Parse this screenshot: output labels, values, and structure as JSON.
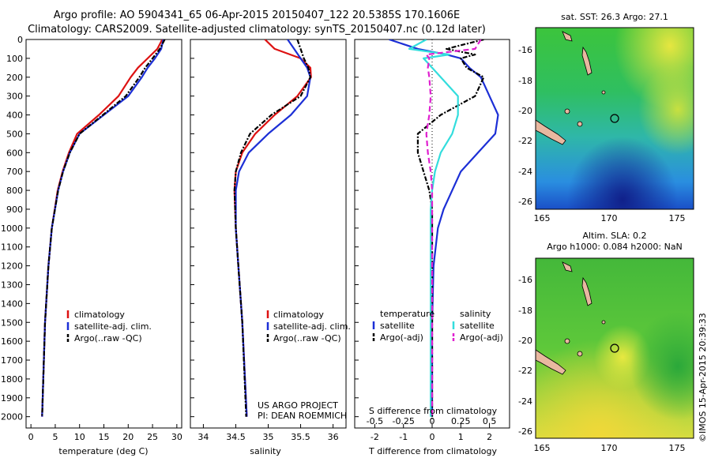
{
  "header": {
    "line1": "Argo profile: AO 5904341_65 06-Apr-2015 20150407_122 20.5385S 170.1606E",
    "line2": "Climatology: CARS2009. Satellite-adjusted climatology: synTS_20150407.nc (0.12d later)"
  },
  "colors": {
    "climatology": "#dd1111",
    "satellite": "#1c2fd6",
    "argo": "#000000",
    "satellite_salinity": "#33dddd",
    "argo_salinity_adj": "#e020d0"
  },
  "chart_data": [
    {
      "type": "line",
      "id": "temperature",
      "xlabel": "temperature (deg C)",
      "ylabel": "",
      "xlim": [
        -1,
        31
      ],
      "ylim": [
        2060,
        0
      ],
      "xticks": [
        0,
        5,
        10,
        15,
        20,
        25,
        30
      ],
      "yticks": [
        0,
        100,
        200,
        300,
        400,
        500,
        600,
        700,
        800,
        900,
        1000,
        1100,
        1200,
        1300,
        1400,
        1500,
        1600,
        1700,
        1800,
        1900,
        2000
      ],
      "legend": [
        "climatology",
        "satellite-adj. clim.",
        "Argo(..raw -QC)"
      ],
      "series": [
        {
          "name": "climatology",
          "color": "#dd1111",
          "style": "solid",
          "depth": [
            0,
            50,
            100,
            150,
            200,
            300,
            400,
            500,
            600,
            700,
            800,
            1000,
            1200,
            1500,
            2000
          ],
          "values": [
            27.0,
            26.0,
            24.0,
            22.0,
            20.5,
            18.0,
            14.0,
            9.5,
            7.8,
            6.5,
            5.5,
            4.3,
            3.6,
            2.9,
            2.3
          ]
        },
        {
          "name": "satellite-adj. clim.",
          "color": "#1c2fd6",
          "style": "solid",
          "depth": [
            0,
            50,
            100,
            150,
            200,
            300,
            400,
            500,
            600,
            700,
            800,
            1000,
            1200,
            1500,
            2000
          ],
          "values": [
            27.2,
            26.8,
            25.5,
            24.0,
            22.8,
            20.0,
            15.0,
            10.0,
            8.0,
            6.6,
            5.6,
            4.3,
            3.6,
            2.9,
            2.3
          ]
        },
        {
          "name": "Argo(..raw -QC)",
          "color": "#000000",
          "style": "dashdot",
          "depth": [
            0,
            50,
            100,
            150,
            200,
            300,
            400,
            500,
            600,
            700,
            800,
            1000,
            1200,
            1500,
            2000
          ],
          "values": [
            27.5,
            26.5,
            25.0,
            23.5,
            22.3,
            19.5,
            14.8,
            10.0,
            8.0,
            6.6,
            5.6,
            4.3,
            3.6,
            2.9,
            2.3
          ]
        }
      ]
    },
    {
      "type": "line",
      "id": "salinity",
      "xlabel": "salinity",
      "xlim": [
        33.8,
        36.2
      ],
      "ylim": [
        2060,
        0
      ],
      "xticks": [
        34,
        34.5,
        35,
        35.5,
        36
      ],
      "legend": [
        "climatology",
        "satellite-adj. clim.",
        "Argo(..raw -QC)"
      ],
      "series": [
        {
          "name": "climatology",
          "color": "#dd1111",
          "style": "solid",
          "depth": [
            0,
            50,
            100,
            150,
            200,
            300,
            400,
            500,
            600,
            700,
            800,
            1000,
            1200,
            1500,
            2000
          ],
          "values": [
            34.95,
            35.1,
            35.5,
            35.65,
            35.66,
            35.45,
            35.1,
            34.8,
            34.6,
            34.5,
            34.48,
            34.5,
            34.54,
            34.6,
            34.67
          ]
        },
        {
          "name": "satellite-adj. clim.",
          "color": "#1c2fd6",
          "style": "solid",
          "depth": [
            0,
            50,
            100,
            150,
            200,
            300,
            400,
            500,
            600,
            700,
            800,
            1000,
            1200,
            1500,
            2000
          ],
          "values": [
            35.3,
            35.4,
            35.5,
            35.6,
            35.65,
            35.6,
            35.35,
            35.0,
            34.7,
            34.55,
            34.5,
            34.5,
            34.54,
            34.6,
            34.67
          ]
        },
        {
          "name": "Argo(..raw -QC)",
          "color": "#000000",
          "style": "dashdot",
          "depth": [
            0,
            50,
            100,
            150,
            200,
            300,
            400,
            500,
            600,
            700,
            800,
            1000,
            1200,
            1500,
            2000
          ],
          "values": [
            35.45,
            35.5,
            35.55,
            35.62,
            35.65,
            35.5,
            35.05,
            34.72,
            34.58,
            34.5,
            34.48,
            34.5,
            34.54,
            34.6,
            34.66
          ]
        }
      ]
    },
    {
      "type": "line",
      "id": "differences",
      "xlabel": "T difference from climatology",
      "xlabel_top": "S difference from climatology",
      "xlim": [
        -2.7,
        2.7
      ],
      "ylim": [
        2060,
        0
      ],
      "xticks": [
        -2,
        -1,
        0,
        1,
        2
      ],
      "xticks_top_labels": [
        "-0.5",
        "-0.25",
        "0",
        "0.25",
        "0.5"
      ],
      "xticks_top_positions": [
        -2,
        -1,
        0,
        1,
        2
      ],
      "legend_left_title": "temperature",
      "legend_right_title": "salinity",
      "legend": [
        "satellite",
        "Argo(-adj)",
        "satellite",
        "Argo(-adj)"
      ],
      "series": [
        {
          "name": "T satellite",
          "color": "#1c2fd6",
          "style": "solid",
          "depth": [
            0,
            50,
            80,
            100,
            150,
            200,
            300,
            400,
            500,
            600,
            700,
            800,
            900,
            1000,
            1200,
            1500,
            2000
          ],
          "values": [
            -1.5,
            -0.5,
            0.5,
            1.0,
            1.3,
            1.7,
            2.0,
            2.3,
            2.2,
            1.6,
            1.0,
            0.7,
            0.4,
            0.2,
            0.05,
            0.0,
            0.0
          ]
        },
        {
          "name": "T Argo(-adj)",
          "color": "#000000",
          "style": "dashdot",
          "depth": [
            0,
            50,
            80,
            100,
            150,
            200,
            300,
            400,
            500,
            600,
            700,
            800,
            900,
            1000,
            1200,
            1500,
            2000
          ],
          "values": [
            1.8,
            0.5,
            1.5,
            1.0,
            1.2,
            1.8,
            1.5,
            0.3,
            -0.5,
            -0.5,
            -0.3,
            -0.1,
            0.0,
            0.0,
            0.0,
            0.0,
            0.0
          ]
        },
        {
          "name": "S satellite",
          "color": "#33dddd",
          "style": "solid",
          "depth": [
            0,
            50,
            80,
            100,
            150,
            200,
            300,
            400,
            500,
            600,
            700,
            800,
            900,
            1000,
            1200,
            1500,
            2000
          ],
          "values": [
            -0.2,
            -0.8,
            0.6,
            -0.3,
            0.0,
            0.3,
            0.9,
            0.9,
            0.7,
            0.3,
            0.1,
            0.0,
            -0.05,
            -0.05,
            -0.05,
            -0.05,
            -0.05
          ]
        },
        {
          "name": "S Argo(-adj)",
          "color": "#e020d0",
          "style": "dashed",
          "depth": [
            0,
            50,
            80,
            100,
            150,
            200,
            300,
            400,
            500,
            600,
            700,
            800,
            900,
            1000,
            1200,
            1500,
            2000
          ],
          "values": [
            1.7,
            1.5,
            -0.2,
            -0.1,
            -0.15,
            -0.1,
            -0.05,
            -0.1,
            -0.2,
            -0.15,
            -0.05,
            0.0,
            0.0,
            0.0,
            0.0,
            0.0,
            0.0
          ]
        }
      ]
    }
  ],
  "panels": {
    "temperature": {
      "legend_labels": [
        "climatology",
        "satellite-adj. clim.",
        "Argo(..raw -QC)"
      ]
    },
    "salinity": {
      "legend_labels": [
        "climatology",
        "satellite-adj. clim.",
        "Argo(..raw -QC)"
      ],
      "credit1": "US ARGO PROJECT",
      "credit2": "PI: DEAN ROEMMICH"
    },
    "differences": {
      "temp_title": "temperature",
      "sal_title": "salinity",
      "temp_labels": [
        "satellite",
        "Argo(-adj)"
      ],
      "sal_labels": [
        "satellite",
        "Argo(-adj)"
      ]
    }
  },
  "maps": {
    "sst": {
      "title": "sat. SST: 26.3  Argo: 27.1",
      "xticks": [
        "165",
        "170",
        "175"
      ],
      "yticks": [
        "-16",
        "-18",
        "-20",
        "-22",
        "-24",
        "-26"
      ]
    },
    "sla": {
      "title1": "Altim. SLA: 0.2",
      "title2": "Argo h1000: 0.084  h2000: NaN",
      "xticks": [
        "165",
        "170",
        "175"
      ],
      "yticks": [
        "-16",
        "-18",
        "-20",
        "-22",
        "-24",
        "-26"
      ]
    }
  },
  "credit": "©IMOS 15-Apr-2015 20:39:33"
}
